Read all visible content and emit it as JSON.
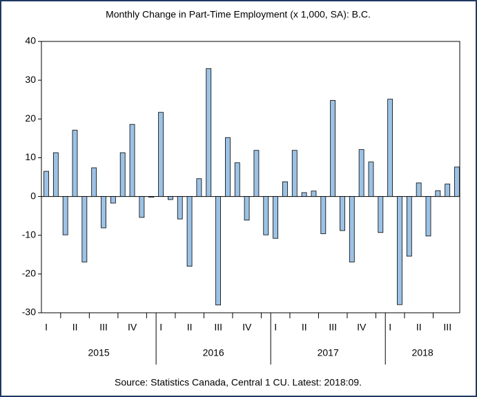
{
  "chart_data": {
    "type": "bar",
    "title": "Monthly Change in Part-Time Employment (x 1,000, SA): B.C.",
    "source": "Source: Statistics Canada, Central 1 CU. Latest: 2018:09.",
    "values": [
      6.5,
      11.3,
      -9.9,
      17.1,
      -16.9,
      7.4,
      -8.1,
      -1.7,
      11.3,
      18.6,
      -5.4,
      -0.2,
      21.7,
      -0.8,
      -5.8,
      -18.0,
      4.6,
      33.0,
      -28.0,
      15.2,
      8.7,
      -6.1,
      11.9,
      -9.9,
      -10.8,
      3.8,
      11.9,
      1.0,
      1.4,
      -9.6,
      24.8,
      -8.8,
      -16.9,
      12.1,
      8.9,
      -9.3,
      25.1,
      -27.9,
      -15.4,
      3.5,
      -10.2,
      1.5,
      3.2,
      7.6
    ],
    "color": "#9cc2e5",
    "quarters": [
      "I",
      "II",
      "III",
      "IV",
      "I",
      "II",
      "III",
      "IV",
      "I",
      "II",
      "III",
      "IV",
      "I",
      "II",
      "III"
    ],
    "years": [
      "2015",
      "2016",
      "2017",
      "2018"
    ],
    "ylim": [
      -30,
      40
    ],
    "yticks": [
      -30,
      -20,
      -10,
      0,
      10,
      20,
      30,
      40
    ]
  }
}
